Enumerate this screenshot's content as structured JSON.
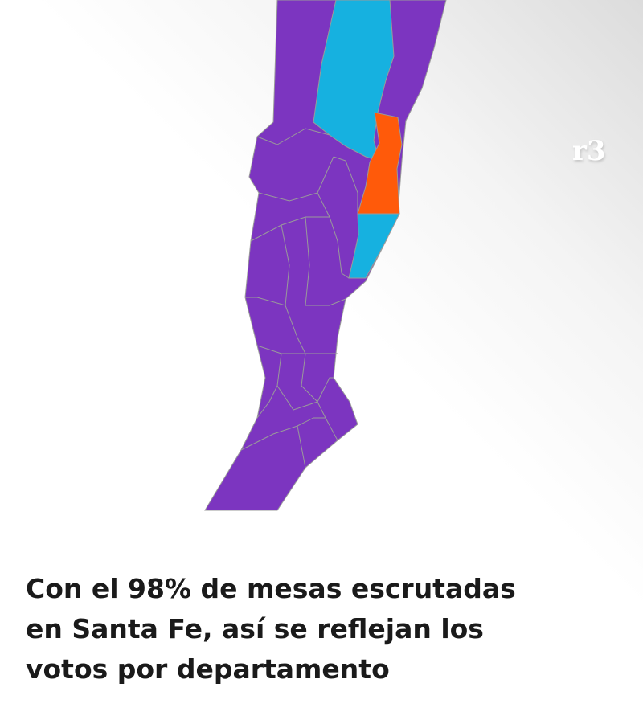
{
  "logo": "r3",
  "caption": {
    "lines": [
      "Con el 98% de mesas escrutadas",
      "en Santa Fe, así se reflejan los",
      "votos por departamento"
    ]
  },
  "map": {
    "region": "Santa Fe",
    "colors": {
      "purple": "#7c35c0",
      "cyan": "#16b1e0",
      "orange": "#ff5a0a",
      "border": "#9a9a9a"
    }
  }
}
